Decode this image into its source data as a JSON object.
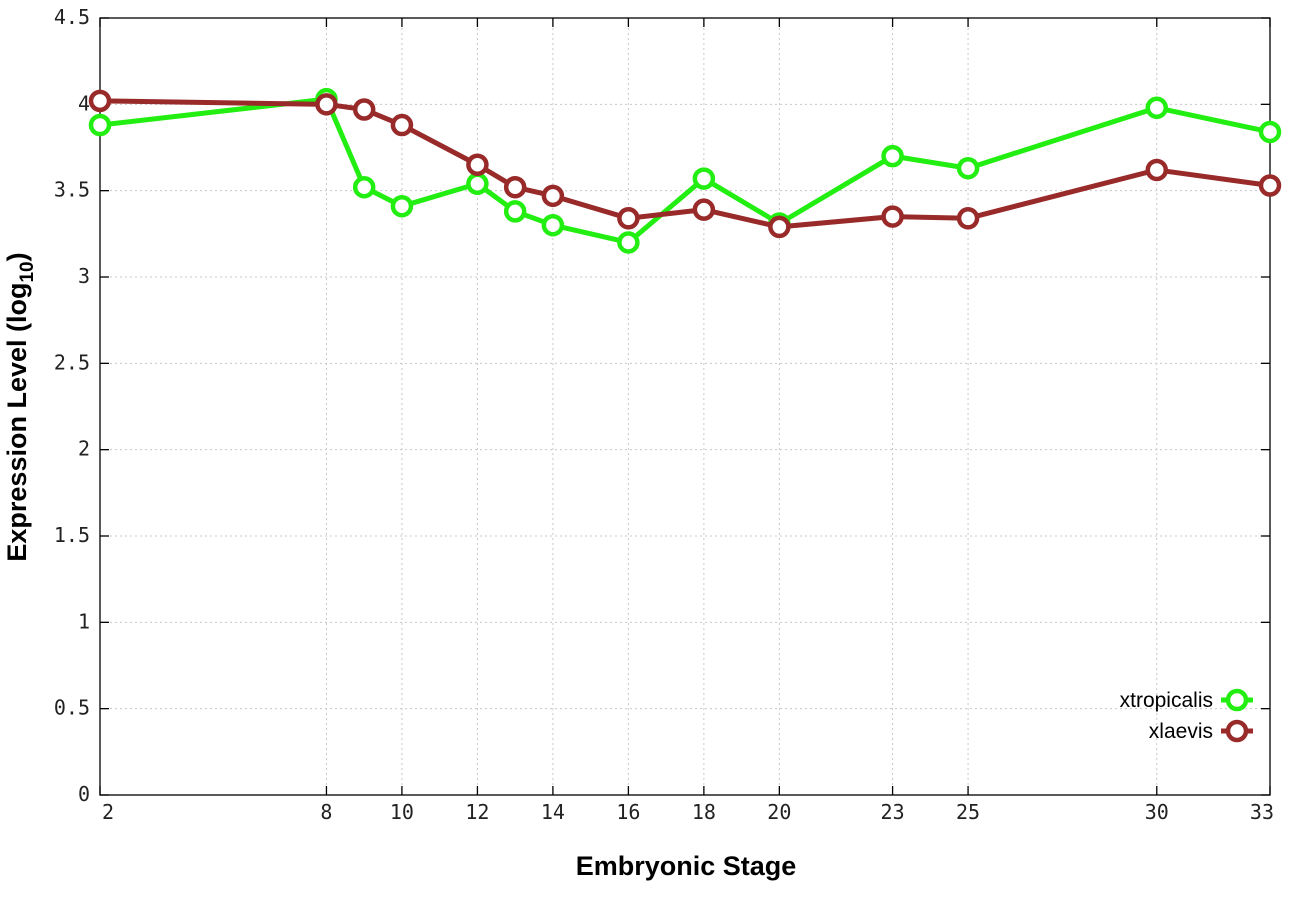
{
  "chart_data": {
    "type": "line",
    "title": "",
    "xlabel": "Embryonic Stage",
    "ylabel": {
      "prefix": "Expression Level (log",
      "subscript": "10",
      "suffix": ")"
    },
    "xlim": [
      2,
      33
    ],
    "ylim": [
      0,
      4.5
    ],
    "x_ticks": [
      2,
      8,
      10,
      12,
      14,
      16,
      18,
      20,
      23,
      25,
      30,
      33
    ],
    "y_ticks": [
      0,
      0.5,
      1,
      1.5,
      2,
      2.5,
      3,
      3.5,
      4,
      4.5
    ],
    "y_tick_labels": [
      "0",
      "0.5",
      "1",
      "1.5",
      "2",
      "2.5",
      "3",
      "3.5",
      "4",
      "4.5"
    ],
    "grid": true,
    "legend_position": "bottom-right",
    "x": [
      2,
      8,
      9,
      10,
      12,
      13,
      14,
      16,
      18,
      20,
      23,
      25,
      30,
      33
    ],
    "series": [
      {
        "name": "xtropicalis",
        "color": "#22ee11",
        "values": [
          3.88,
          4.03,
          3.52,
          3.41,
          3.54,
          3.38,
          3.3,
          3.2,
          3.57,
          3.31,
          3.7,
          3.63,
          3.98,
          3.84
        ]
      },
      {
        "name": "xlaevis",
        "color": "#992a2a",
        "values": [
          4.02,
          4.0,
          3.97,
          3.88,
          3.65,
          3.52,
          3.47,
          3.34,
          3.39,
          3.29,
          3.35,
          3.34,
          3.62,
          3.53
        ]
      }
    ]
  }
}
